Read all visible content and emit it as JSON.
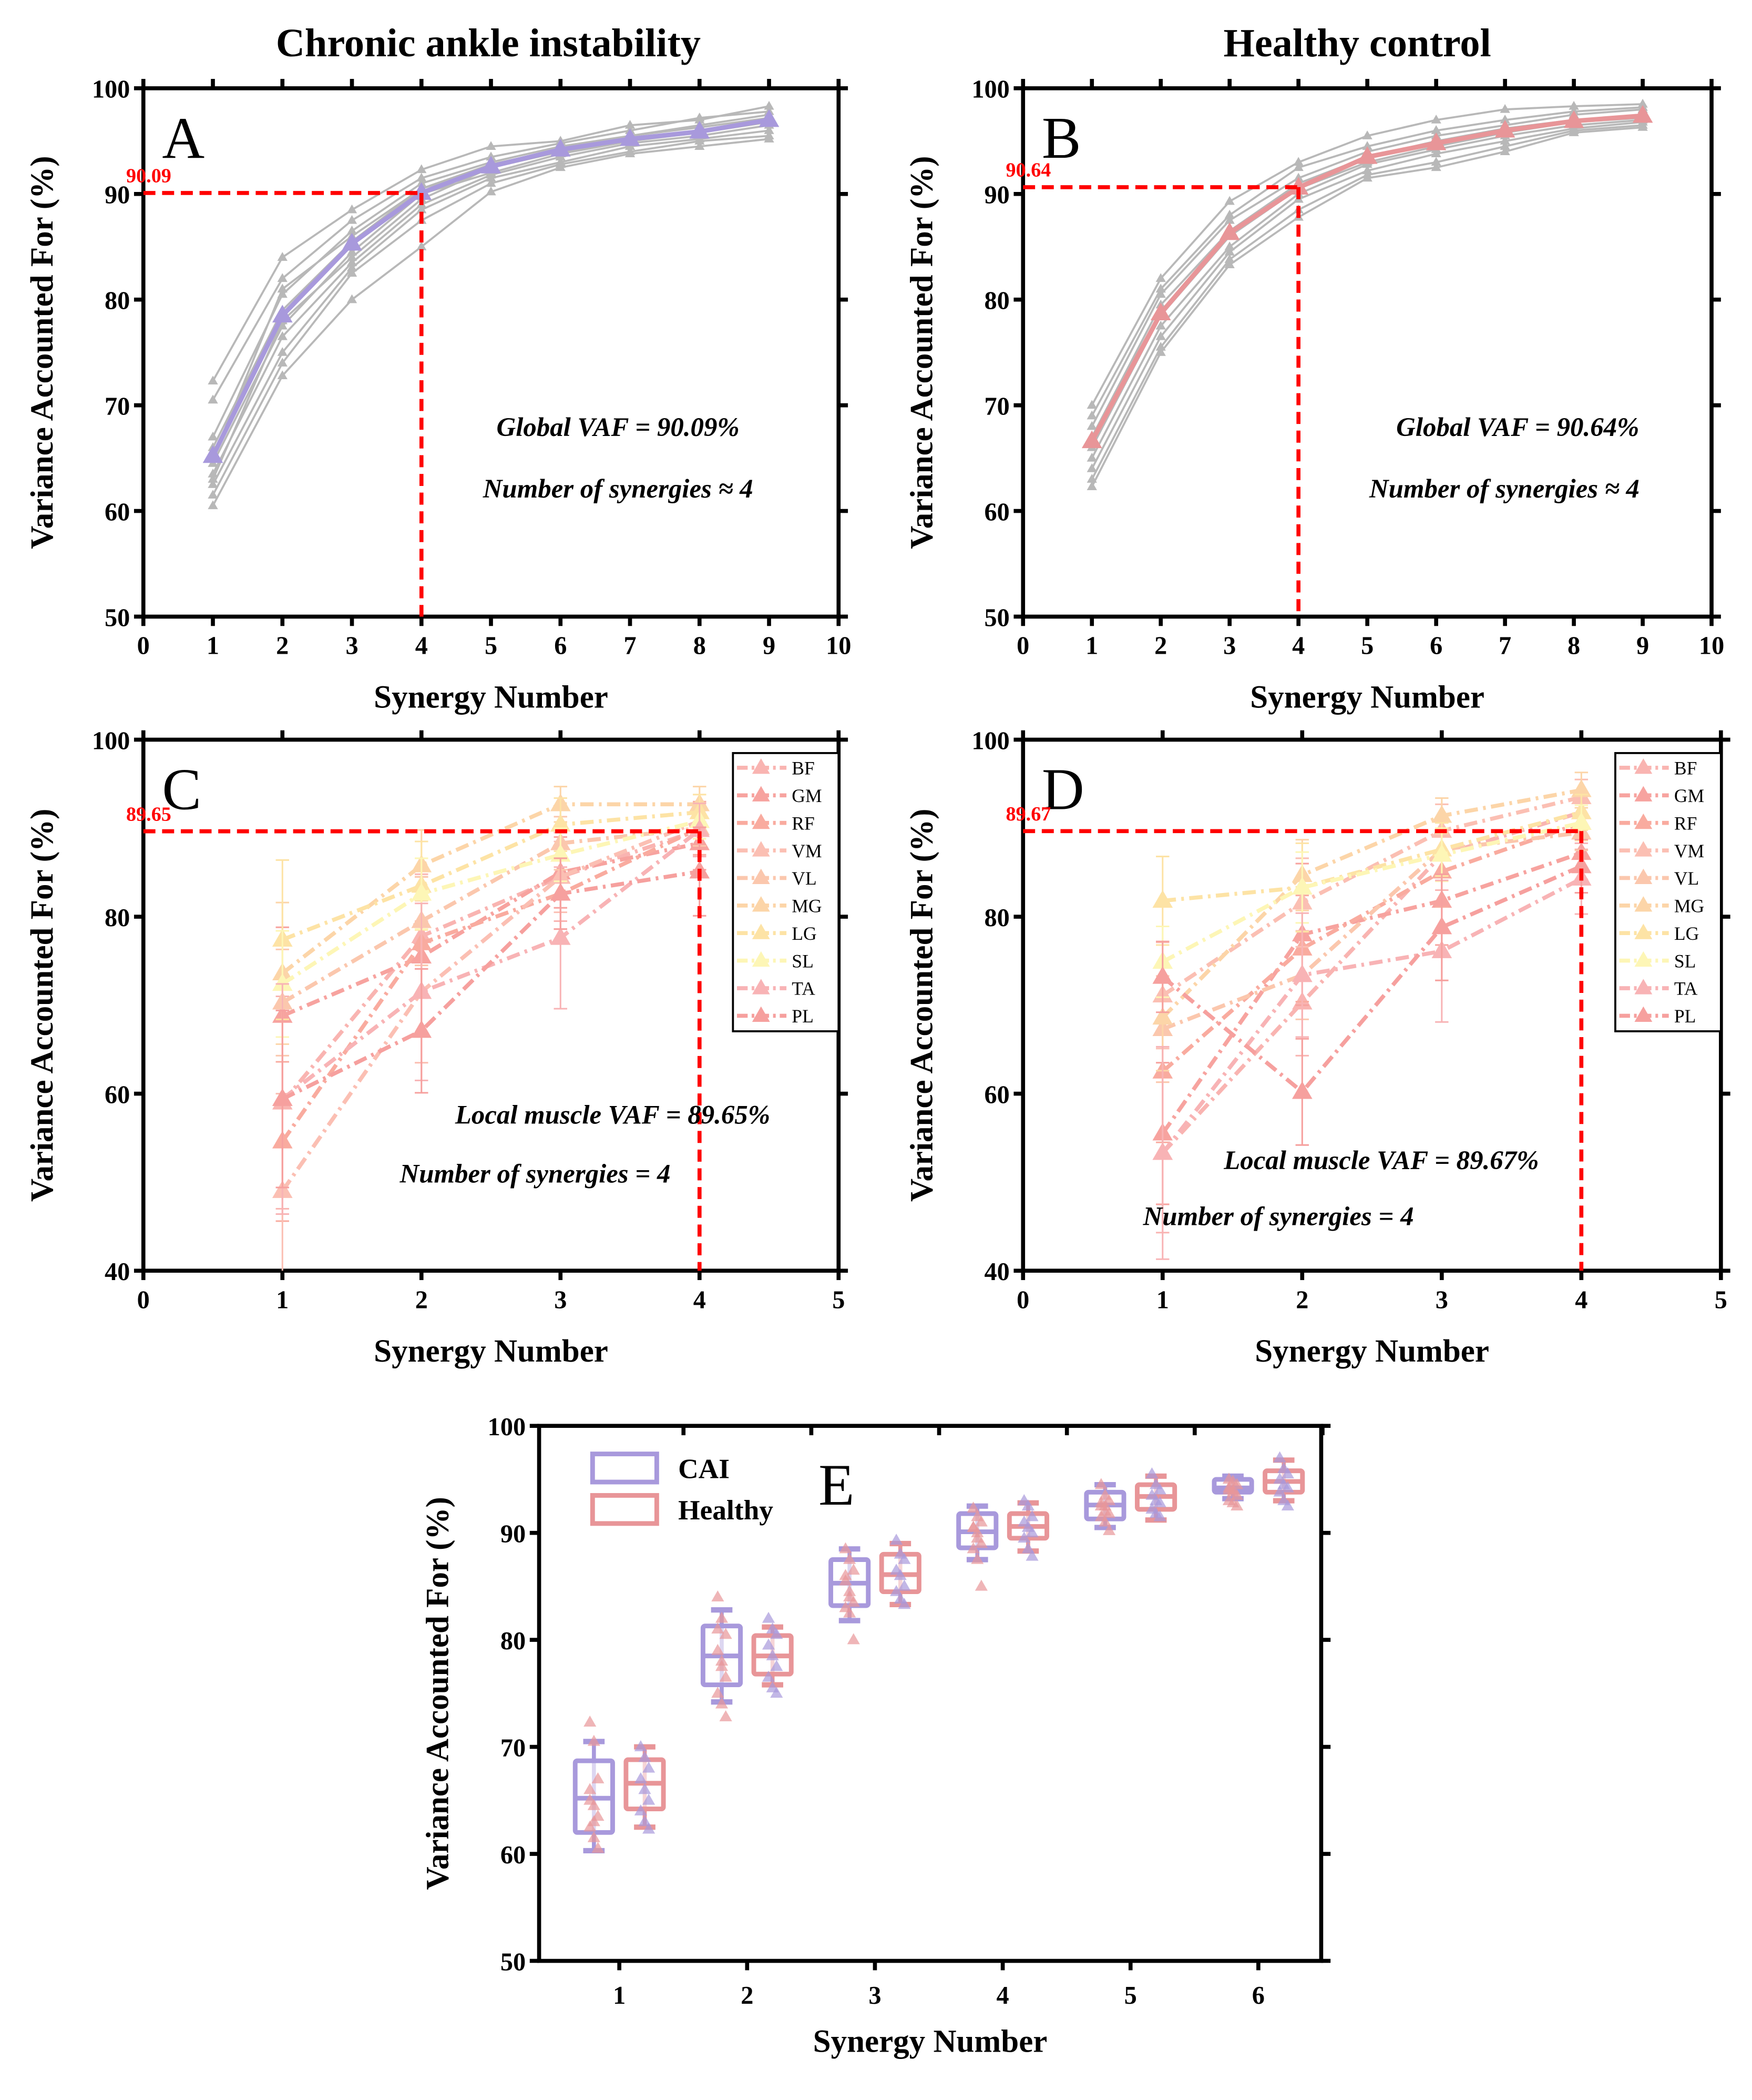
{
  "colors": {
    "cai": "#a899dc",
    "healthy": "#e89598",
    "grey": "#b8b8b8",
    "threshold": "#ff0000",
    "muscles": {
      "BF": "#f9b4b1",
      "GM": "#f7a39f",
      "RF": "#f9ab9f",
      "VM": "#fbbfb3",
      "VL": "#fbc7ad",
      "MG": "#fcd5a8",
      "LG": "#fde3a5",
      "SL": "#fdf6b6",
      "TA": "#f8b3b5",
      "PL": "#f6a09e"
    }
  },
  "chart_data": [
    {
      "id": "A",
      "type": "line",
      "group_title": "Chronic ankle instability",
      "panel_letter": "A",
      "xlabel": "Synergy Number",
      "ylabel": "Variance Accounted For (%)",
      "xlim": [
        0,
        10
      ],
      "ylim": [
        50,
        100
      ],
      "xticks": [
        0,
        1,
        2,
        3,
        4,
        5,
        6,
        7,
        8,
        9,
        10
      ],
      "yticks": [
        50,
        60,
        70,
        80,
        90,
        100
      ],
      "x": [
        1,
        2,
        3,
        4,
        5,
        6,
        7,
        8,
        9
      ],
      "mean": [
        65.2,
        78.5,
        85.3,
        90.1,
        92.6,
        94.2,
        95.2,
        95.9,
        97.0
      ],
      "subjects": [
        [
          72.3,
          84,
          88.5,
          92.3,
          94.5,
          95,
          96.5,
          97,
          98.3
        ],
        [
          70.5,
          82,
          87.5,
          91.5,
          93.5,
          94.8,
          96,
          97.2,
          97.8
        ],
        [
          67,
          80.5,
          86.5,
          91,
          93,
          94.5,
          95.5,
          96.5,
          97.5
        ],
        [
          66,
          79,
          85.5,
          90.5,
          92.5,
          94,
          95.2,
          96,
          97
        ],
        [
          64.5,
          77.5,
          84.5,
          90,
          92,
          93.8,
          95,
          95.8,
          96.8
        ],
        [
          63.5,
          76.5,
          83.5,
          89,
          91.8,
          93.5,
          94.8,
          95.5,
          96.5
        ],
        [
          62.5,
          75,
          83,
          88.5,
          91.5,
          93,
          94.5,
          95.2,
          96
        ],
        [
          61.5,
          74,
          82.5,
          87.5,
          91,
          92.8,
          94,
          95,
          95.5
        ],
        [
          60.5,
          72.8,
          80,
          85,
          90.2,
          92.5,
          93.8,
          94.5,
          95.2
        ],
        [
          65,
          81,
          86,
          90.5,
          92.8,
          94.2,
          95.5,
          96.3,
          97.2
        ],
        [
          63,
          78,
          84,
          89.5,
          92.5,
          94,
          95,
          96,
          96.8
        ]
      ],
      "threshold": {
        "value": 90.09,
        "label": "90.09",
        "n": 4
      },
      "annotations": [
        "Global VAF = 90.09%",
        "Number of synergies ≈ 4"
      ]
    },
    {
      "id": "B",
      "type": "line",
      "group_title": "Healthy control",
      "panel_letter": "B",
      "xlabel": "Synergy Number",
      "ylabel": "Variance Accounted For (%)",
      "xlim": [
        0,
        10
      ],
      "ylim": [
        50,
        100
      ],
      "xticks": [
        0,
        1,
        2,
        3,
        4,
        5,
        6,
        7,
        8,
        9,
        10
      ],
      "yticks": [
        50,
        60,
        70,
        80,
        90,
        100
      ],
      "x": [
        1,
        2,
        3,
        4,
        5,
        6,
        7,
        8,
        9
      ],
      "mean": [
        66.6,
        78.7,
        86.3,
        90.6,
        93.5,
        94.8,
        96.0,
        96.9,
        97.4
      ],
      "subjects": [
        [
          70,
          82,
          89.3,
          93,
          95.5,
          97,
          98,
          98.3,
          98.5
        ],
        [
          69,
          81,
          88,
          92.5,
          94.5,
          96,
          97,
          97.8,
          98.2
        ],
        [
          68,
          80.5,
          87.5,
          91.5,
          94,
          95.5,
          96.5,
          97.5,
          98
        ],
        [
          67,
          79.5,
          86.5,
          91,
          93.5,
          95,
          96.2,
          97,
          97.5
        ],
        [
          66,
          78.5,
          86,
          90.5,
          93,
          94.5,
          95.8,
          96.8,
          97.2
        ],
        [
          65,
          77.5,
          85,
          90,
          92.8,
          94.2,
          95.5,
          96.5,
          97
        ],
        [
          64,
          76.5,
          84.5,
          89.5,
          92.2,
          93.8,
          95,
          96.2,
          96.8
        ],
        [
          63,
          75.5,
          83.8,
          88.5,
          91.8,
          93,
          94.5,
          96,
          96.5
        ],
        [
          62.3,
          75,
          83.3,
          87.8,
          91.5,
          92.5,
          94,
          95.8,
          96.3
        ]
      ],
      "threshold": {
        "value": 90.64,
        "label": "90.64",
        "n": 4
      },
      "annotations": [
        "Global VAF = 90.64%",
        "Number of synergies ≈ 4"
      ]
    },
    {
      "id": "C",
      "type": "line",
      "panel_letter": "C",
      "xlabel": "Synergy Number",
      "ylabel": "Variance Accounted For (%)",
      "xlim": [
        0,
        5
      ],
      "ylim": [
        40,
        100
      ],
      "xticks": [
        0,
        1,
        2,
        3,
        4,
        5
      ],
      "yticks": [
        40,
        60,
        80,
        100
      ],
      "x": [
        1,
        2,
        3,
        4
      ],
      "series": [
        {
          "name": "BF",
          "values": [
            59,
            77.8,
            84.5,
            89.8
          ],
          "sd": [
            12,
            7,
            5,
            3
          ]
        },
        {
          "name": "GM",
          "values": [
            68.8,
            75.5,
            85,
            88.3
          ],
          "sd": [
            10,
            9,
            4,
            3
          ]
        },
        {
          "name": "RF",
          "values": [
            54.6,
            77,
            82.6,
            90
          ],
          "sd": [
            9,
            6,
            4,
            3
          ]
        },
        {
          "name": "VM",
          "values": [
            49,
            71.5,
            84.5,
            90.8
          ],
          "sd": [
            11,
            8,
            4,
            2
          ]
        },
        {
          "name": "VL",
          "values": [
            70.3,
            79.5,
            88.3,
            90
          ],
          "sd": [
            6,
            5,
            3,
            2
          ]
        },
        {
          "name": "MG",
          "values": [
            73.6,
            85.8,
            92.7,
            92.7
          ],
          "sd": [
            8,
            4,
            2,
            2
          ]
        },
        {
          "name": "LG",
          "values": [
            77.4,
            83.5,
            90.4,
            91.8
          ],
          "sd": [
            9,
            5,
            3,
            2
          ]
        },
        {
          "name": "SL",
          "values": [
            72.4,
            82.6,
            87,
            90.8
          ],
          "sd": [
            6,
            4,
            3,
            2
          ]
        },
        {
          "name": "TA",
          "values": [
            59.4,
            71.5,
            77.6,
            89.8
          ],
          "sd": [
            13,
            10,
            8,
            3
          ]
        },
        {
          "name": "PL",
          "values": [
            59.4,
            67.1,
            82.6,
            85.1
          ],
          "sd": [
            10,
            7,
            4,
            5
          ]
        }
      ],
      "threshold": {
        "value": 89.65,
        "label": "89.65",
        "n": 4
      },
      "annotations": [
        "Local muscle VAF = 89.65%",
        "Number of synergies = 4"
      ]
    },
    {
      "id": "D",
      "type": "line",
      "panel_letter": "D",
      "xlabel": "Synergy Number",
      "ylabel": "Variance Accounted For (%)",
      "xlim": [
        0,
        5
      ],
      "ylim": [
        40,
        100
      ],
      "xticks": [
        0,
        1,
        2,
        3,
        4,
        5
      ],
      "yticks": [
        40,
        60,
        80,
        100
      ],
      "x": [
        1,
        2,
        3,
        4
      ],
      "series": [
        {
          "name": "BF",
          "values": [
            53.3,
            70.3,
            87,
            91.8
          ],
          "sd": [
            9,
            6,
            4,
            2
          ]
        },
        {
          "name": "GM",
          "values": [
            55.5,
            78,
            81.8,
            87.2
          ],
          "sd": [
            8,
            8,
            5,
            3
          ]
        },
        {
          "name": "RF",
          "values": [
            62.5,
            76.4,
            85.1,
            90.6
          ],
          "sd": [
            8,
            6,
            4,
            3
          ]
        },
        {
          "name": "VM",
          "values": [
            71.1,
            81.6,
            89.7,
            93.5
          ],
          "sd": [
            6,
            5,
            3,
            2
          ]
        },
        {
          "name": "VL",
          "values": [
            67.3,
            73.4,
            87.6,
            89.5
          ],
          "sd": [
            6,
            5,
            3,
            2
          ]
        },
        {
          "name": "MG",
          "values": [
            68.6,
            84.7,
            91.4,
            94.3
          ],
          "sd": [
            6,
            4,
            2,
            2
          ]
        },
        {
          "name": "LG",
          "values": [
            81.8,
            83.3,
            87.6,
            91.8
          ],
          "sd": [
            5,
            5,
            3,
            2
          ]
        },
        {
          "name": "SL",
          "values": [
            74.9,
            83.3,
            87,
            90.6
          ],
          "sd": [
            4,
            4,
            3,
            2
          ]
        },
        {
          "name": "TA",
          "values": [
            53.3,
            73.4,
            76.1,
            84.3
          ],
          "sd": [
            12,
            7,
            8,
            4
          ]
        },
        {
          "name": "PL",
          "values": [
            73.2,
            60.2,
            78.8,
            85.7
          ],
          "sd": [
            4,
            6,
            6,
            3
          ]
        }
      ],
      "threshold": {
        "value": 89.67,
        "label": "89.67",
        "n": 4
      },
      "annotations": [
        "Local muscle VAF = 89.67%",
        "Number of synergies = 4"
      ]
    },
    {
      "id": "E",
      "type": "box",
      "panel_letter": "E",
      "xlabel": "Synergy Number",
      "ylabel": "Variance Accounted For (%)",
      "categories": [
        "1",
        "2",
        "3",
        "4",
        "5",
        "6"
      ],
      "ylim": [
        50,
        100
      ],
      "yticks": [
        50,
        60,
        70,
        80,
        90,
        100
      ],
      "legend": [
        "CAI",
        "Healthy"
      ],
      "series": [
        {
          "name": "CAI",
          "boxes": [
            {
              "min": 60.3,
              "q1": 62,
              "median": 65.2,
              "q3": 68.7,
              "max": 70.5
            },
            {
              "min": 74.2,
              "q1": 75.8,
              "median": 78.5,
              "q3": 81.3,
              "max": 82.8
            },
            {
              "min": 81.8,
              "q1": 83.2,
              "median": 85.3,
              "q3": 87.5,
              "max": 88.5
            },
            {
              "min": 87.5,
              "q1": 88.6,
              "median": 90.1,
              "q3": 91.8,
              "max": 92.5
            },
            {
              "min": 90.5,
              "q1": 91.3,
              "median": 92.6,
              "q3": 93.8,
              "max": 94.5
            },
            {
              "min": 93.2,
              "q1": 93.8,
              "median": 94.2,
              "q3": 95.0,
              "max": 95.3
            }
          ]
        },
        {
          "name": "Healthy",
          "boxes": [
            {
              "min": 62.5,
              "q1": 64.2,
              "median": 66.6,
              "q3": 68.8,
              "max": 70
            },
            {
              "min": 75.8,
              "q1": 76.8,
              "median": 78.5,
              "q3": 80.4,
              "max": 81.2
            },
            {
              "min": 83.3,
              "q1": 84.5,
              "median": 86.1,
              "q3": 88,
              "max": 89
            },
            {
              "min": 88.3,
              "q1": 89.5,
              "median": 90.6,
              "q3": 91.8,
              "max": 92.8
            },
            {
              "min": 91.2,
              "q1": 92.2,
              "median": 93.4,
              "q3": 94.5,
              "max": 95.3
            },
            {
              "min": 93,
              "q1": 93.8,
              "median": 94.8,
              "q3": 95.8,
              "max": 96.8
            }
          ]
        }
      ]
    }
  ]
}
